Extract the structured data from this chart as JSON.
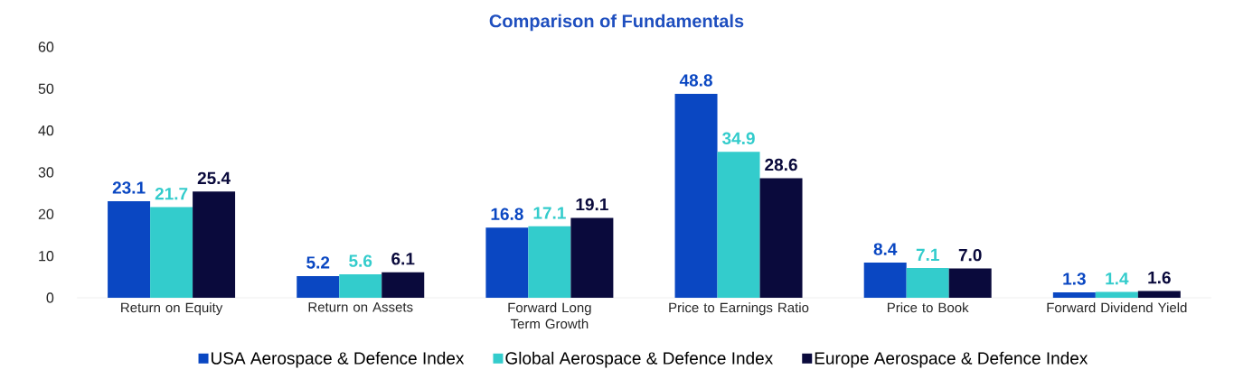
{
  "chart_data": {
    "type": "bar",
    "title": "Comparison of Fundamentals",
    "categories": [
      "Return on Equity",
      "Return on Assets",
      "Forward Long Term Growth",
      "Price to Earnings Ratio",
      "Price to Book",
      "Forward Dividend Yield"
    ],
    "series": [
      {
        "name": "USA Aerospace & Defence Index",
        "color": "#0a47c2",
        "values": [
          23.1,
          5.2,
          16.8,
          48.8,
          8.4,
          1.3
        ],
        "value_labels": [
          "23.1",
          "5.2",
          "16.8",
          "48.8",
          "8.4",
          "1.3"
        ]
      },
      {
        "name": "Global Aerospace & Defence Index",
        "color": "#33cccc",
        "values": [
          21.7,
          5.6,
          17.1,
          34.9,
          7.1,
          1.4
        ],
        "value_labels": [
          "21.7",
          "5.6",
          "17.1",
          "34.9",
          "7.1",
          "1.4"
        ]
      },
      {
        "name": "Europe Aerospace & Defence Index",
        "color": "#0a0a3c",
        "values": [
          25.4,
          6.1,
          19.1,
          28.6,
          7.0,
          1.6
        ],
        "value_labels": [
          "25.4",
          "6.1",
          "19.1",
          "28.6",
          "7.0",
          "1.6"
        ]
      }
    ],
    "ylim": [
      0,
      60
    ],
    "yticks": [
      0,
      10,
      20,
      30,
      40,
      50,
      60
    ],
    "grid": false,
    "legend": "bottom"
  }
}
